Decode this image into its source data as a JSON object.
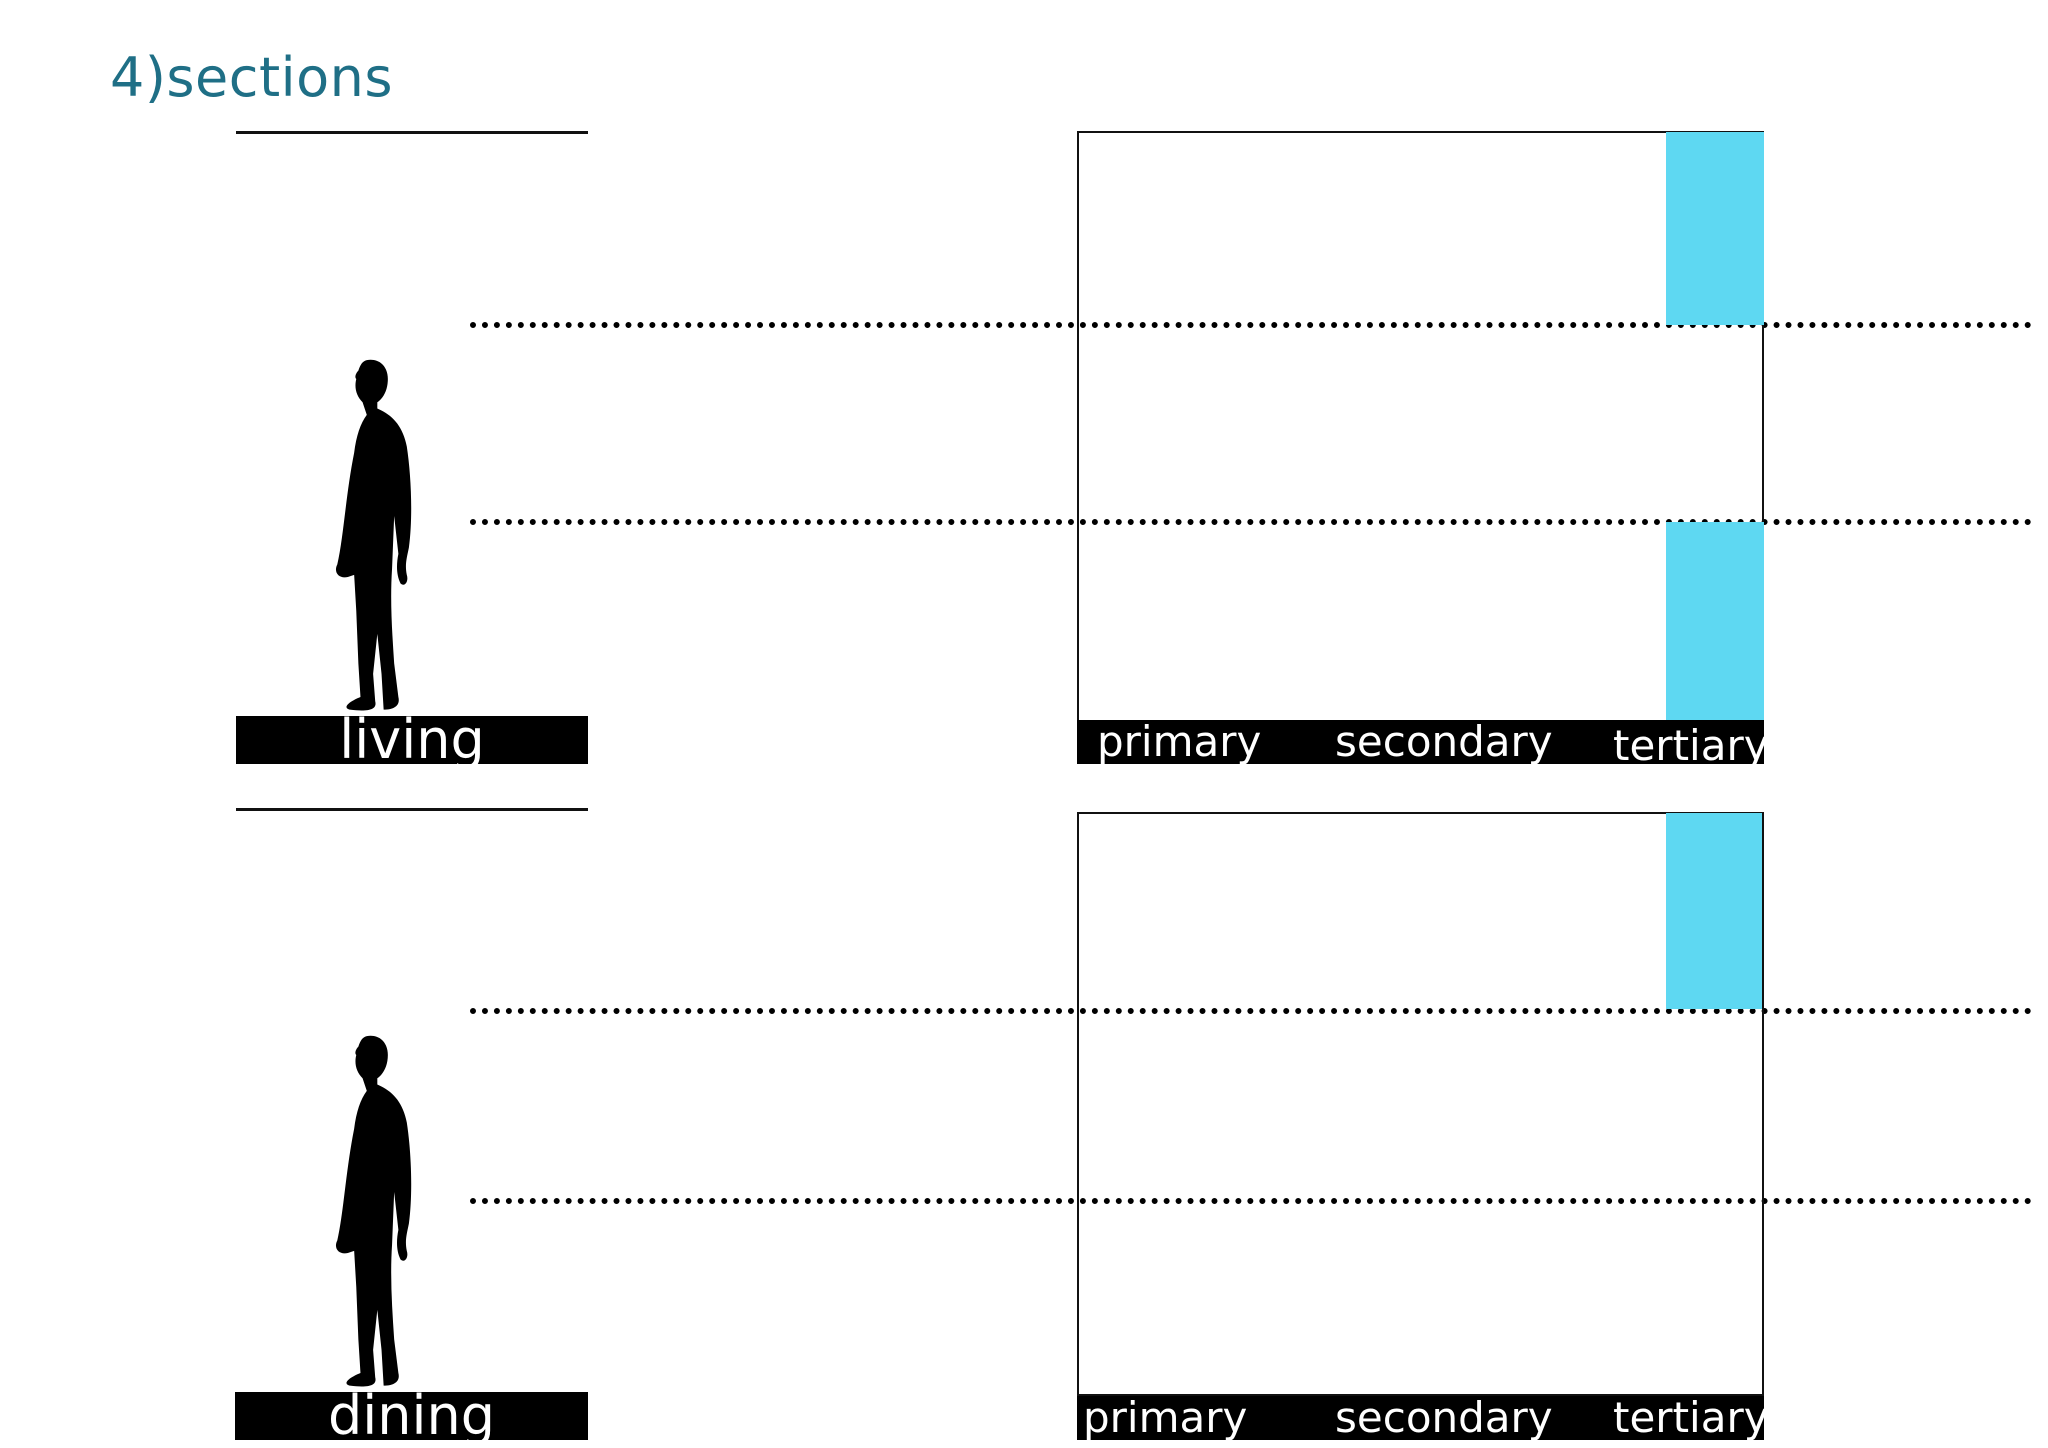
{
  "title": "4)sections",
  "sections": [
    {
      "name": "living",
      "categories": [
        "primary",
        "secondary",
        "tertiary"
      ],
      "highlight_color": "#5ed8f2"
    },
    {
      "name": "dining",
      "categories": [
        "primary",
        "secondary",
        "tertiary"
      ],
      "highlight_color": "#5ed8f2"
    }
  ],
  "icons": {
    "person": "person-silhouette-icon"
  }
}
